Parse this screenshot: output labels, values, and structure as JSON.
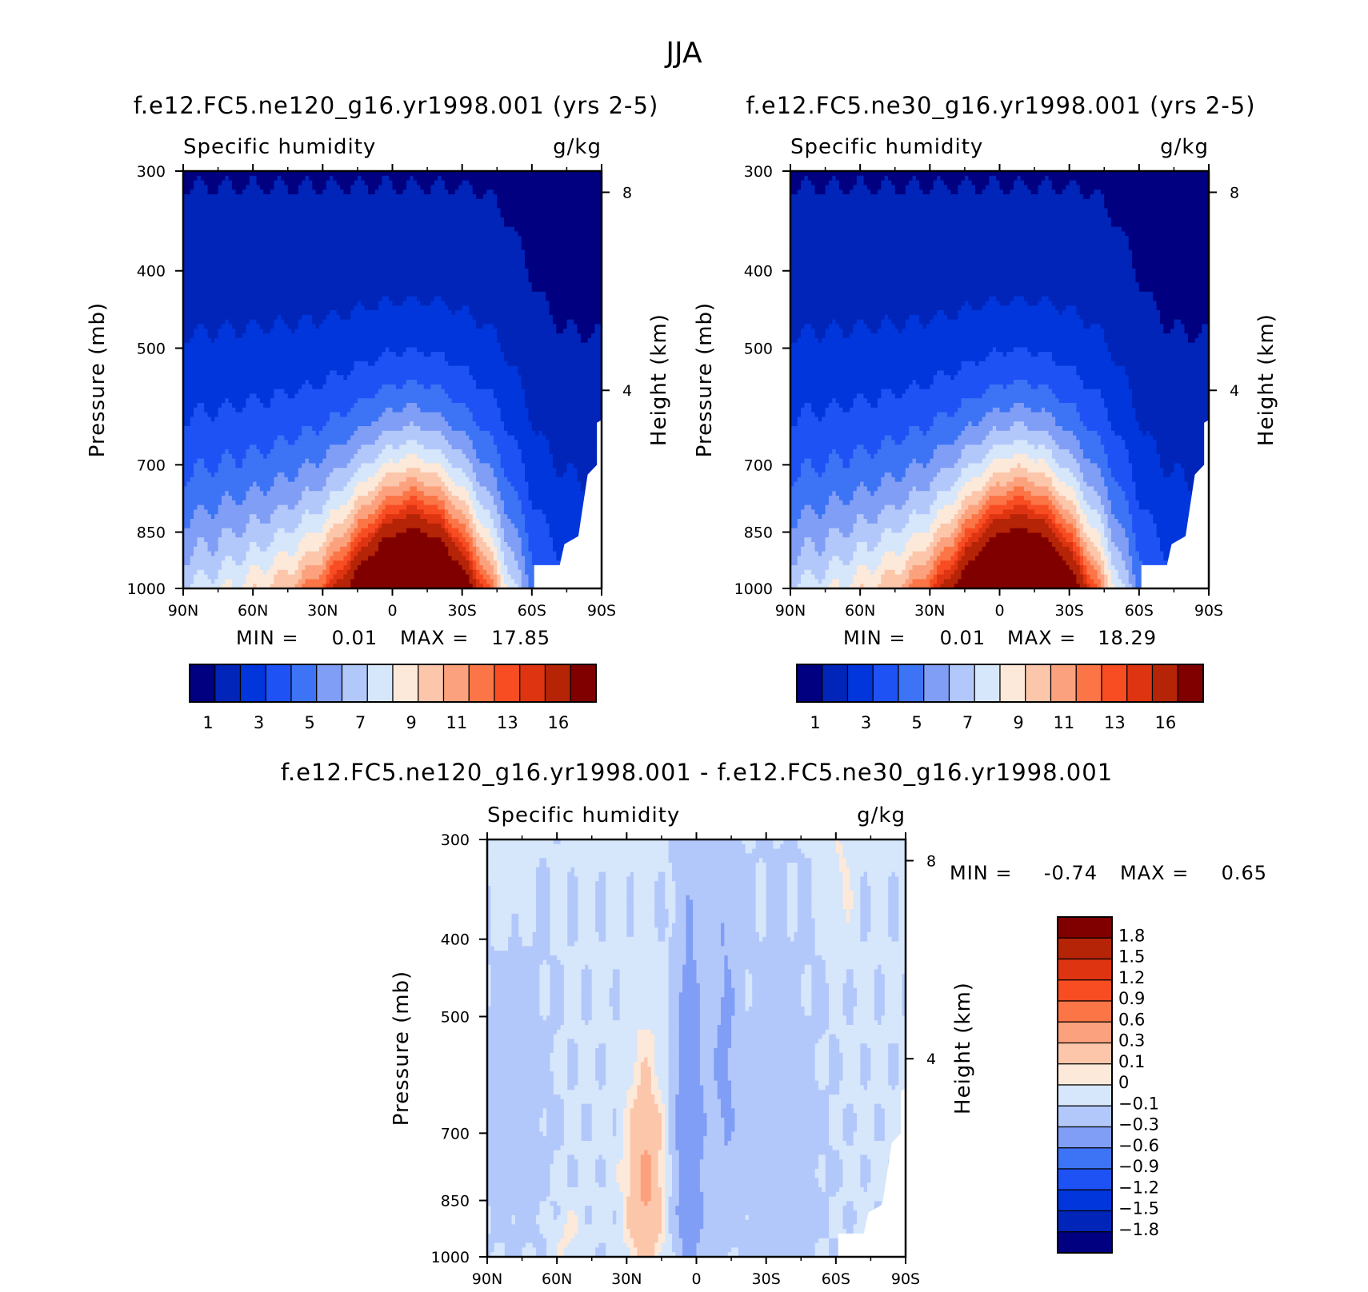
{
  "figure_title": "JJA",
  "colors": {
    "abs": [
      "#000080",
      "#0025b8",
      "#0036db",
      "#1f52f5",
      "#3d73f5",
      "#809ef5",
      "#b3c8fa",
      "#d6e6fb",
      "#fde9d9",
      "#fcc6ab",
      "#fca17d",
      "#fb7547",
      "#f84c22",
      "#df3412",
      "#b52406",
      "#800000"
    ],
    "diff": [
      "#000080",
      "#0025b8",
      "#0036db",
      "#1f52f5",
      "#3d73f5",
      "#809ef5",
      "#b3c8fa",
      "#d6e6fb",
      "#fde9d9",
      "#fcc6ab",
      "#fca17d",
      "#fb7547",
      "#f84c22",
      "#df3412",
      "#b52406",
      "#800000"
    ]
  },
  "chart_data": [
    {
      "type": "heatmap",
      "id": "left",
      "title": "f.e12.FC5.ne120_g16.yr1998.001 (yrs 2-5)",
      "left_label": "Specific humidity",
      "right_label": "g/kg",
      "xlabel": "",
      "ylabel": "Pressure (mb)",
      "y2label": "Height (km)",
      "xticks": [
        "90N",
        "60N",
        "30N",
        "0",
        "30S",
        "60S",
        "90S"
      ],
      "yticks": [
        "300",
        "400",
        "500",
        "700",
        "850",
        "1000"
      ],
      "y2ticks": [
        "8",
        "4"
      ],
      "min_label": "MIN =",
      "min_value": "0.01",
      "max_label": "MAX =",
      "max_value": "17.85",
      "colorbar_labels": [
        "1",
        "3",
        "5",
        "7",
        "9",
        "11",
        "13",
        "16"
      ],
      "contour_levels": [
        1,
        2,
        3,
        4,
        5,
        6,
        7,
        8,
        9,
        10,
        11,
        12,
        13,
        14,
        16
      ],
      "peak_latitude": -10,
      "peak_value": 17.85
    },
    {
      "type": "heatmap",
      "id": "right",
      "title": "f.e12.FC5.ne30_g16.yr1998.001 (yrs 2-5)",
      "left_label": "Specific humidity",
      "right_label": "g/kg",
      "xlabel": "",
      "ylabel": "Pressure (mb)",
      "y2label": "Height (km)",
      "xticks": [
        "90N",
        "60N",
        "30N",
        "0",
        "30S",
        "60S",
        "90S"
      ],
      "yticks": [
        "300",
        "400",
        "500",
        "700",
        "850",
        "1000"
      ],
      "y2ticks": [
        "8",
        "4"
      ],
      "min_label": "MIN =",
      "min_value": "0.01",
      "max_label": "MAX =",
      "max_value": "18.29",
      "colorbar_labels": [
        "1",
        "3",
        "5",
        "7",
        "9",
        "11",
        "13",
        "16"
      ],
      "contour_levels": [
        1,
        2,
        3,
        4,
        5,
        6,
        7,
        8,
        9,
        10,
        11,
        12,
        13,
        14,
        16
      ],
      "peak_latitude": -10,
      "peak_value": 18.29
    },
    {
      "type": "heatmap",
      "id": "diff",
      "title": "f.e12.FC5.ne120_g16.yr1998.001 - f.e12.FC5.ne30_g16.yr1998.001",
      "left_label": "Specific humidity",
      "right_label": "g/kg",
      "xlabel": "",
      "ylabel": "Pressure (mb)",
      "y2label": "Height (km)",
      "xticks": [
        "90N",
        "60N",
        "30N",
        "0",
        "30S",
        "60S",
        "90S"
      ],
      "yticks": [
        "300",
        "400",
        "500",
        "700",
        "850",
        "1000"
      ],
      "y2ticks": [
        "8",
        "4"
      ],
      "min_label": "MIN =",
      "min_value": "-0.74",
      "max_label": "MAX =",
      "max_value": "0.65",
      "colorbar_labels": [
        "1.8",
        "1.5",
        "1.2",
        "0.9",
        "0.6",
        "0.3",
        "0.1",
        "0",
        "-0.1",
        "-0.3",
        "-0.6",
        "-0.9",
        "-1.2",
        "-1.5",
        "-1.8"
      ],
      "contour_levels": [
        -1.8,
        -1.5,
        -1.2,
        -0.9,
        -0.6,
        -0.3,
        -0.1,
        0,
        0.1,
        0.3,
        0.6,
        0.9,
        1.2,
        1.5,
        1.8
      ]
    }
  ]
}
